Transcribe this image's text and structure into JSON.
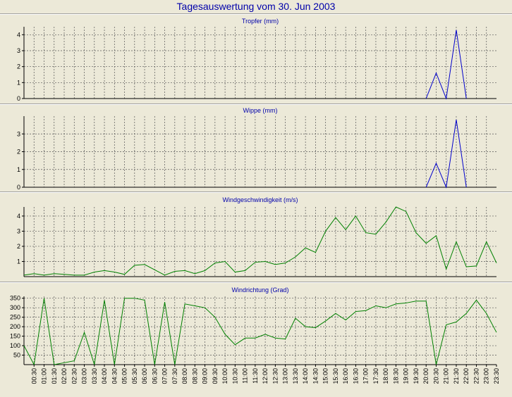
{
  "title": "Tagesauswertung vom 30. Jun 2003",
  "x_labels": [
    "00:30",
    "01:00",
    "01:30",
    "02:00",
    "02:30",
    "03:00",
    "03:30",
    "04:00",
    "04:30",
    "05:00",
    "05:30",
    "06:00",
    "06:30",
    "07:00",
    "07:30",
    "08:00",
    "08:30",
    "09:00",
    "09:30",
    "10:00",
    "10:30",
    "11:00",
    "11:30",
    "12:00",
    "12:30",
    "13:00",
    "13:30",
    "14:00",
    "14:30",
    "15:00",
    "15:30",
    "16:00",
    "16:30",
    "17:00",
    "17:30",
    "18:00",
    "18:30",
    "19:00",
    "19:30",
    "20:00",
    "20:30",
    "21:00",
    "21:30",
    "22:00",
    "22:30",
    "23:00",
    "23:30"
  ],
  "chart_data": [
    {
      "type": "line",
      "title": "Tropfer (mm)",
      "x": [
        "00:00",
        "00:30",
        "01:00",
        "01:30",
        "02:00",
        "02:30",
        "03:00",
        "03:30",
        "04:00",
        "04:30",
        "05:00",
        "05:30",
        "06:00",
        "06:30",
        "07:00",
        "07:30",
        "08:00",
        "08:30",
        "09:00",
        "09:30",
        "10:00",
        "10:30",
        "11:00",
        "11:30",
        "12:00",
        "12:30",
        "13:00",
        "13:30",
        "14:00",
        "14:30",
        "15:00",
        "15:30",
        "16:00",
        "16:30",
        "17:00",
        "17:30",
        "18:00",
        "18:30",
        "19:00",
        "19:30",
        "20:00",
        "20:30",
        "21:00",
        "21:30",
        "22:00",
        "22:30",
        "23:00",
        "23:30"
      ],
      "values": [
        0,
        0,
        0,
        0,
        0,
        0,
        0,
        0,
        0,
        0,
        0,
        0,
        0,
        0,
        0,
        0,
        0,
        0,
        0,
        0,
        0,
        0,
        0,
        0,
        0,
        0,
        0,
        0,
        0,
        0,
        0,
        0,
        0,
        0,
        0,
        0,
        0,
        0,
        0,
        0,
        0,
        1.6,
        0,
        4.3,
        0,
        0,
        0,
        0
      ],
      "visible_from": 40,
      "visible_to": 44,
      "ylim": [
        0,
        4.5
      ],
      "yticks": [
        0,
        1,
        2,
        3,
        4
      ],
      "color": "#0000cc"
    },
    {
      "type": "line",
      "title": "Wippe (mm)",
      "x": [
        "00:00",
        "00:30",
        "01:00",
        "01:30",
        "02:00",
        "02:30",
        "03:00",
        "03:30",
        "04:00",
        "04:30",
        "05:00",
        "05:30",
        "06:00",
        "06:30",
        "07:00",
        "07:30",
        "08:00",
        "08:30",
        "09:00",
        "09:30",
        "10:00",
        "10:30",
        "11:00",
        "11:30",
        "12:00",
        "12:30",
        "13:00",
        "13:30",
        "14:00",
        "14:30",
        "15:00",
        "15:30",
        "16:00",
        "16:30",
        "17:00",
        "17:30",
        "18:00",
        "18:30",
        "19:00",
        "19:30",
        "20:00",
        "20:30",
        "21:00",
        "21:30",
        "22:00",
        "22:30",
        "23:00",
        "23:30"
      ],
      "values": [
        0,
        0,
        0,
        0,
        0,
        0,
        0,
        0,
        0,
        0,
        0,
        0,
        0,
        0,
        0,
        0,
        0,
        0,
        0,
        0,
        0,
        0,
        0,
        0,
        0,
        0,
        0,
        0,
        0,
        0,
        0,
        0,
        0,
        0,
        0,
        0,
        0,
        0,
        0,
        0,
        0,
        1.35,
        0,
        3.8,
        0,
        0,
        0,
        0
      ],
      "visible_from": 40,
      "visible_to": 44,
      "ylim": [
        0,
        4
      ],
      "yticks": [
        0,
        1,
        2,
        3
      ],
      "color": "#0000cc"
    },
    {
      "type": "line",
      "title": "Windgeschwindigkeit (m/s)",
      "x": [
        "00:00",
        "00:30",
        "01:00",
        "01:30",
        "02:00",
        "02:30",
        "03:00",
        "03:30",
        "04:00",
        "04:30",
        "05:00",
        "05:30",
        "06:00",
        "06:30",
        "07:00",
        "07:30",
        "08:00",
        "08:30",
        "09:00",
        "09:30",
        "10:00",
        "10:30",
        "11:00",
        "11:30",
        "12:00",
        "12:30",
        "13:00",
        "13:30",
        "14:00",
        "14:30",
        "15:00",
        "15:30",
        "16:00",
        "16:30",
        "17:00",
        "17:30",
        "18:00",
        "18:30",
        "19:00",
        "19:30",
        "20:00",
        "20:30",
        "21:00",
        "21:30",
        "22:00",
        "22:30",
        "23:00",
        "23:30"
      ],
      "values": [
        0.1,
        0.2,
        0.1,
        0.2,
        0.15,
        0.1,
        0.1,
        0.3,
        0.4,
        0.3,
        0.15,
        0.75,
        0.8,
        0.45,
        0.1,
        0.35,
        0.4,
        0.2,
        0.4,
        0.9,
        1.0,
        0.3,
        0.4,
        0.95,
        1.0,
        0.8,
        0.9,
        1.3,
        1.9,
        1.6,
        3.0,
        3.9,
        3.1,
        4.0,
        2.9,
        2.8,
        3.6,
        4.6,
        4.3,
        2.9,
        2.2,
        2.7,
        0.5,
        2.3,
        0.65,
        0.7,
        2.3,
        0.9
      ],
      "ylim": [
        0,
        4.6
      ],
      "yticks": [
        1,
        2,
        3,
        4
      ],
      "color": "#008000"
    },
    {
      "type": "line",
      "title": "Windrichtung (Grad)",
      "x": [
        "00:00",
        "00:30",
        "01:00",
        "01:30",
        "02:00",
        "02:30",
        "03:00",
        "03:30",
        "04:00",
        "04:30",
        "05:00",
        "05:30",
        "06:00",
        "06:30",
        "07:00",
        "07:30",
        "08:00",
        "08:30",
        "09:00",
        "09:30",
        "10:00",
        "10:30",
        "11:00",
        "11:30",
        "12:00",
        "12:30",
        "13:00",
        "13:30",
        "14:00",
        "14:30",
        "15:00",
        "15:30",
        "16:00",
        "16:30",
        "17:00",
        "17:30",
        "18:00",
        "18:30",
        "19:00",
        "19:30",
        "20:00",
        "20:30",
        "21:00",
        "21:30",
        "22:00",
        "22:30",
        "23:00",
        "23:30"
      ],
      "values": [
        100,
        0,
        350,
        0,
        10,
        20,
        170,
        0,
        340,
        0,
        350,
        350,
        340,
        0,
        330,
        0,
        320,
        310,
        300,
        250,
        160,
        105,
        140,
        140,
        160,
        140,
        135,
        245,
        200,
        195,
        230,
        270,
        235,
        280,
        285,
        310,
        300,
        320,
        325,
        335,
        335,
        0,
        210,
        225,
        270,
        340,
        270,
        170
      ],
      "ylim": [
        0,
        360
      ],
      "yticks": [
        50,
        100,
        150,
        200,
        250,
        300,
        350
      ],
      "color": "#008000"
    }
  ]
}
